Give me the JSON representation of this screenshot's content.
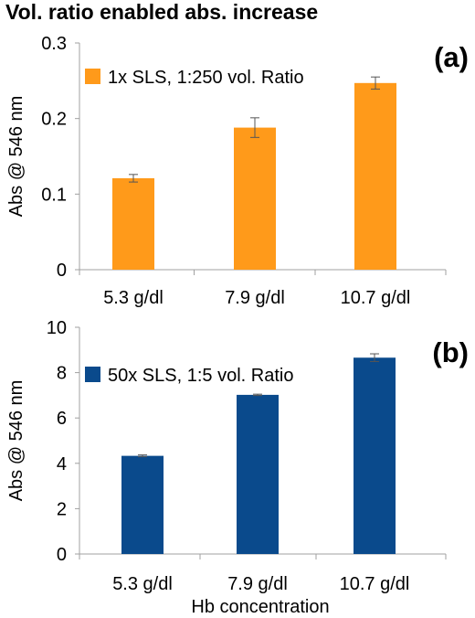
{
  "title": "Vol. ratio enabled abs. increase",
  "chart_data": [
    {
      "type": "bar",
      "panel_label": "(a)",
      "categories": [
        "5.3 g/dl",
        "7.9  g/dl",
        "10.7  g/dl"
      ],
      "series": [
        {
          "name": "1x SLS, 1:250 vol. Ratio",
          "values": [
            0.121,
            0.188,
            0.247
          ],
          "errors": [
            0.005,
            0.013,
            0.008
          ],
          "color": "#ff9a1a"
        }
      ],
      "ylabel": "Abs @ 546 nm",
      "ylim": [
        0,
        0.3
      ],
      "yticks": [
        0,
        0.1,
        0.2,
        0.3
      ],
      "ytick_labels": [
        "0",
        "0.1",
        "0.2",
        "0.3"
      ],
      "grid": false,
      "legend": "top-left"
    },
    {
      "type": "bar",
      "panel_label": "(b)",
      "categories": [
        "5.3 g/dl",
        "7.9  g/dl",
        "10.7  g/dl"
      ],
      "series": [
        {
          "name": "50x SLS, 1:5 vol. Ratio",
          "values": [
            4.33,
            7.02,
            8.66
          ],
          "errors": [
            0.04,
            0.03,
            0.17
          ],
          "color": "#0a4a8c"
        }
      ],
      "xlabel": "Hb concentration",
      "ylabel": "Abs @ 546 nm",
      "ylim": [
        0,
        10
      ],
      "yticks": [
        0,
        2,
        4,
        6,
        8,
        10
      ],
      "ytick_labels": [
        "0",
        "2",
        "4",
        "6",
        "8",
        "10"
      ],
      "grid": false,
      "legend": "top-left"
    }
  ]
}
